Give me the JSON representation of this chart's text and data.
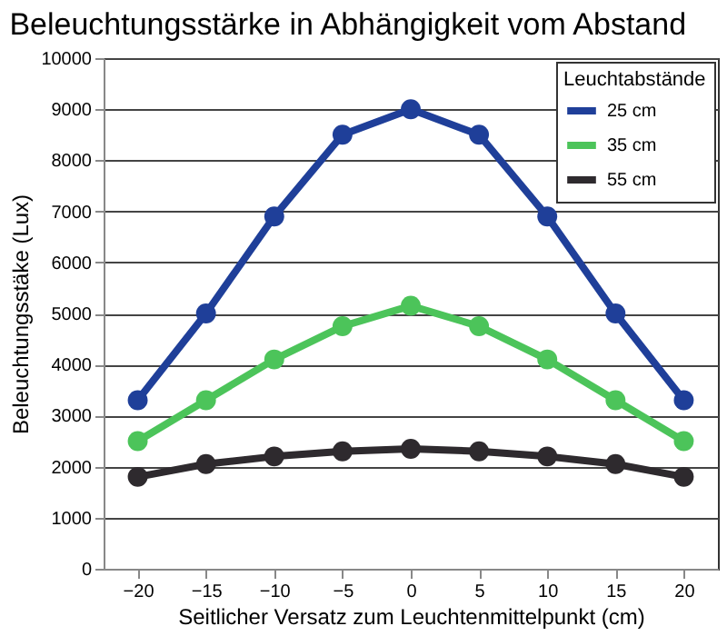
{
  "chart_data": {
    "type": "line",
    "title": "Beleuchtungsstärke in Abhängigkeit vom Abstand",
    "xlabel": "Seitlicher Versatz zum Leuchtenmittelpunkt (cm)",
    "ylabel": "Beleuchtungsstäke (Lux)",
    "legend_title": "Leuchtabstände",
    "x": [
      -20,
      -15,
      -10,
      -5,
      0,
      5,
      10,
      15,
      20
    ],
    "series": [
      {
        "name": "25 cm",
        "color": "#1f3f99",
        "values": [
          3300,
          5000,
          6900,
          8500,
          9000,
          8500,
          6900,
          5000,
          3300
        ]
      },
      {
        "name": "35 cm",
        "color": "#4cc45a",
        "values": [
          2500,
          3300,
          4100,
          4750,
          5150,
          4750,
          4100,
          3300,
          2500
        ]
      },
      {
        "name": "55 cm",
        "color": "#2e2a2e",
        "values": [
          1800,
          2050,
          2200,
          2300,
          2350,
          2300,
          2200,
          2050,
          1800
        ]
      }
    ],
    "xlim": [
      -22.5,
      22.5
    ],
    "xticks": [
      -20,
      -15,
      -10,
      -5,
      0,
      5,
      10,
      15,
      20
    ],
    "ylim": [
      0,
      10000
    ],
    "yticks": [
      0,
      1000,
      2000,
      3000,
      4000,
      5000,
      6000,
      7000,
      8000,
      9000,
      10000
    ],
    "grid": "y",
    "legend": "top right",
    "marker": "circle",
    "line_style": "solid"
  }
}
